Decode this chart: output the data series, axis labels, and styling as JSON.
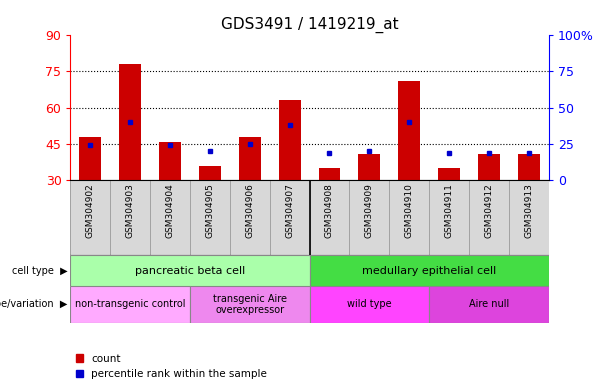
{
  "title": "GDS3491 / 1419219_at",
  "samples": [
    "GSM304902",
    "GSM304903",
    "GSM304904",
    "GSM304905",
    "GSM304906",
    "GSM304907",
    "GSM304908",
    "GSM304909",
    "GSM304910",
    "GSM304911",
    "GSM304912",
    "GSM304913"
  ],
  "count_values": [
    48,
    78,
    46,
    36,
    48,
    63,
    35,
    41,
    71,
    35,
    41,
    41
  ],
  "percentile_values": [
    24,
    40,
    24,
    20,
    25,
    38,
    19,
    20,
    40,
    19,
    19,
    19
  ],
  "bar_color": "#cc0000",
  "dot_color": "#0000cc",
  "bar_bottom": 30,
  "ylim_left": [
    30,
    90
  ],
  "ylim_right": [
    0,
    100
  ],
  "yticks_left": [
    30,
    45,
    60,
    75,
    90
  ],
  "yticks_right": [
    0,
    25,
    50,
    75,
    100
  ],
  "ytick_labels_right": [
    "0",
    "25",
    "50",
    "75",
    "100%"
  ],
  "grid_lines": [
    45,
    60,
    75
  ],
  "cell_type_groups": [
    {
      "label": "pancreatic beta cell",
      "start": 0,
      "end": 6,
      "color": "#aaffaa"
    },
    {
      "label": "medullary epithelial cell",
      "start": 6,
      "end": 12,
      "color": "#44dd44"
    }
  ],
  "genotype_groups": [
    {
      "label": "non-transgenic control",
      "start": 0,
      "end": 3,
      "color": "#ffaaff"
    },
    {
      "label": "transgenic Aire\noverexpressor",
      "start": 3,
      "end": 6,
      "color": "#ee88ee"
    },
    {
      "label": "wild type",
      "start": 6,
      "end": 9,
      "color": "#ff44ff"
    },
    {
      "label": "Aire null",
      "start": 9,
      "end": 12,
      "color": "#dd44dd"
    }
  ],
  "bar_width": 0.55,
  "xticklabel_fontsize": 6.5,
  "ytick_fontsize": 9,
  "title_fontsize": 11,
  "annotation_fontsize": 8,
  "row_label_fontsize": 7,
  "legend_fontsize": 7.5
}
